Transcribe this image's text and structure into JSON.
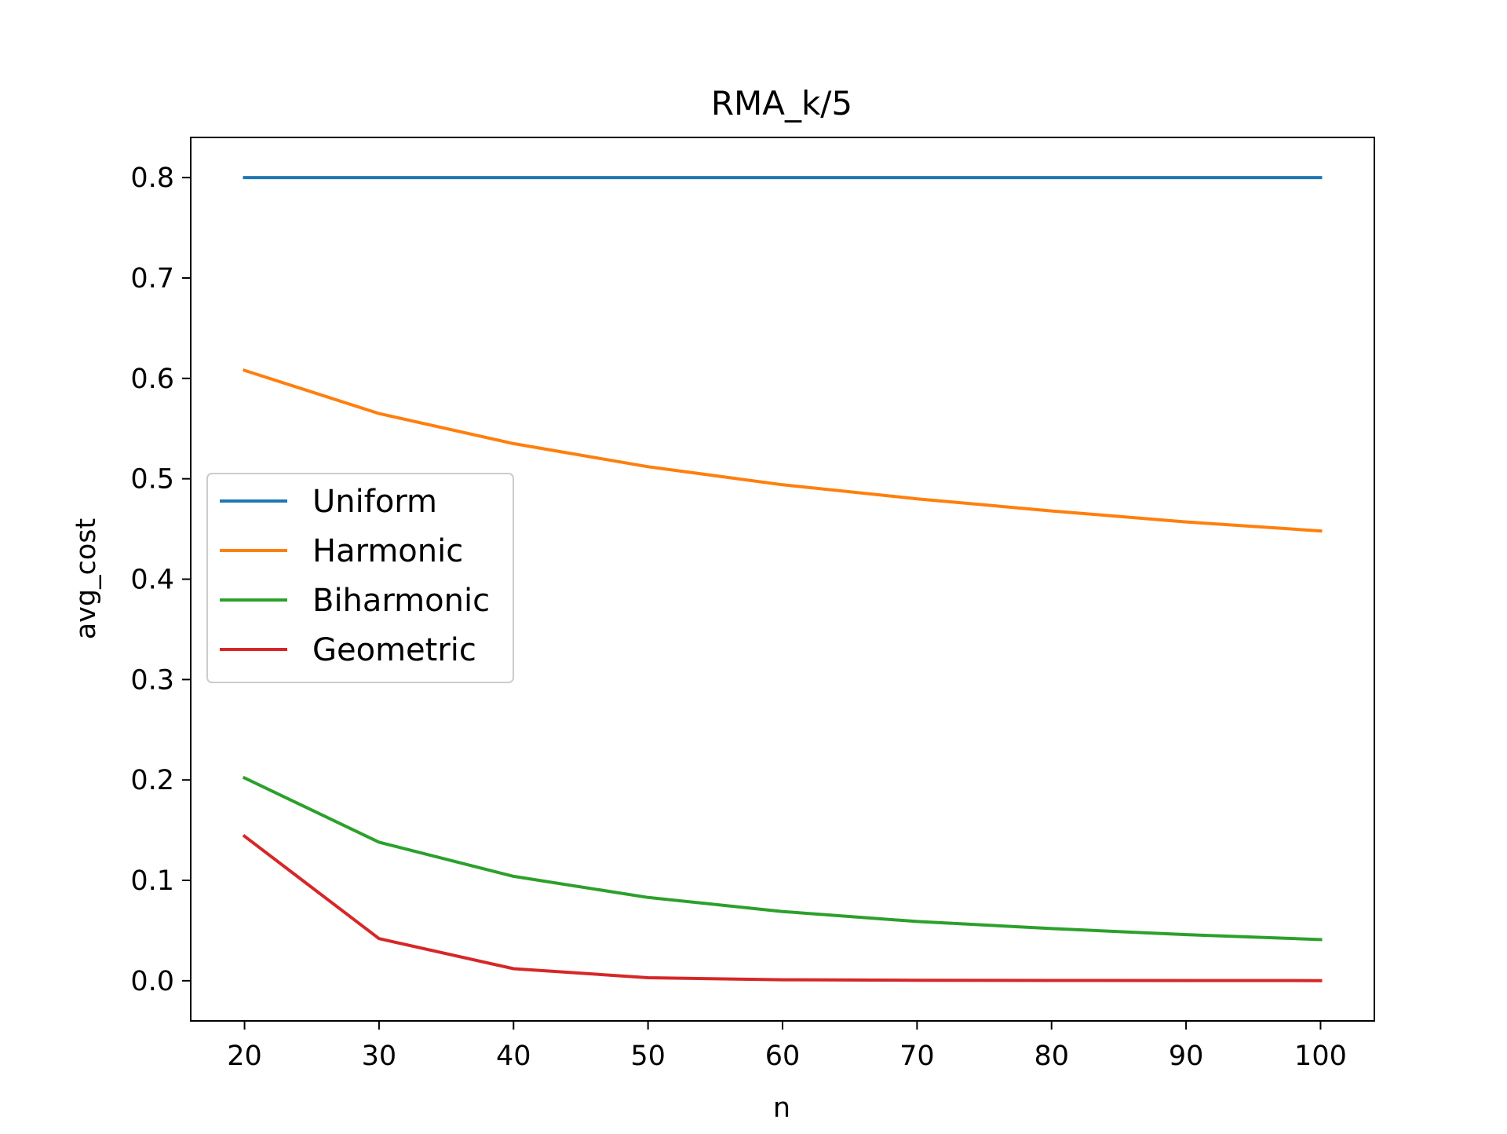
{
  "chart_data": {
    "type": "line",
    "title": "RMA_k/5",
    "xlabel": "n",
    "ylabel": "avg_cost",
    "x": [
      20,
      30,
      40,
      50,
      60,
      70,
      80,
      90,
      100
    ],
    "xticks": [
      "20",
      "30",
      "40",
      "50",
      "60",
      "70",
      "80",
      "90",
      "100"
    ],
    "yticks": [
      "0.0",
      "0.1",
      "0.2",
      "0.3",
      "0.4",
      "0.5",
      "0.6",
      "0.7",
      "0.8"
    ],
    "xlim": [
      16,
      104
    ],
    "ylim": [
      -0.04,
      0.84
    ],
    "grid": false,
    "legend_position": "center-left",
    "series": [
      {
        "name": "Uniform",
        "color": "#1f77b4",
        "values": [
          0.8,
          0.8,
          0.8,
          0.8,
          0.8,
          0.8,
          0.8,
          0.8,
          0.8
        ]
      },
      {
        "name": "Harmonic",
        "color": "#ff7f0e",
        "values": [
          0.608,
          0.565,
          0.535,
          0.512,
          0.494,
          0.48,
          0.468,
          0.457,
          0.448
        ]
      },
      {
        "name": "Biharmonic",
        "color": "#2ca02c",
        "values": [
          0.202,
          0.138,
          0.104,
          0.083,
          0.069,
          0.059,
          0.052,
          0.046,
          0.041
        ]
      },
      {
        "name": "Geometric",
        "color": "#d62728",
        "values": [
          0.144,
          0.042,
          0.012,
          0.003,
          0.001,
          0.0005,
          0.0003,
          0.0002,
          0.0001
        ]
      }
    ]
  }
}
